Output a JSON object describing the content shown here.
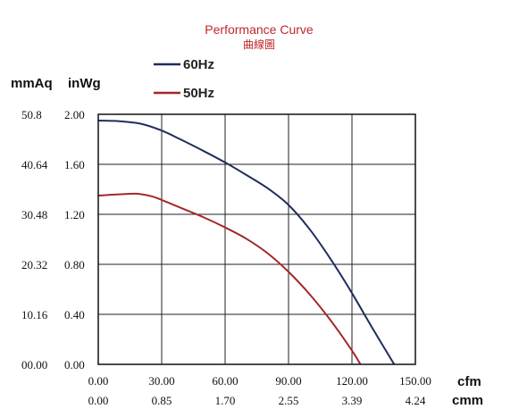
{
  "chart_data": {
    "type": "line",
    "title": "Performance Curve",
    "subtitle": "曲線圖",
    "y_unit_primary": "mmAq",
    "y_unit_secondary": "inWg",
    "x_unit_primary": "cfm",
    "x_unit_secondary": "cmm",
    "xlim": [
      0,
      150
    ],
    "ylim": [
      0,
      2.0
    ],
    "x_ticks_cfm": [
      "0.00",
      "30.00",
      "60.00",
      "90.00",
      "120.00",
      "150.00"
    ],
    "x_ticks_cmm": [
      "0.00",
      "0.85",
      "1.70",
      "2.55",
      "3.39",
      "4.24"
    ],
    "y_ticks_inwg": [
      "0.00",
      "0.40",
      "0.80",
      "1.20",
      "1.60",
      "2.00"
    ],
    "y_ticks_mmaq": [
      "00.00",
      "10.16",
      "20.32",
      "30.48",
      "40.64",
      "50.8"
    ],
    "legend_position": "top-left",
    "grid": true,
    "series": [
      {
        "name": "60Hz",
        "color": "#1f2d5c",
        "x": [
          0,
          10,
          20,
          30,
          40,
          50,
          60,
          70,
          80,
          90,
          100,
          110,
          120,
          130,
          140
        ],
        "y": [
          1.95,
          1.945,
          1.925,
          1.87,
          1.79,
          1.705,
          1.615,
          1.515,
          1.41,
          1.275,
          1.08,
          0.84,
          0.57,
          0.28,
          0.0
        ]
      },
      {
        "name": "50Hz",
        "color": "#a4272a",
        "x": [
          0,
          10,
          18,
          25,
          30,
          40,
          50,
          60,
          70,
          80,
          90,
          100,
          110,
          120,
          124
        ],
        "y": [
          1.35,
          1.36,
          1.365,
          1.345,
          1.315,
          1.245,
          1.175,
          1.095,
          1.005,
          0.89,
          0.74,
          0.56,
          0.35,
          0.11,
          0.0
        ]
      }
    ]
  }
}
